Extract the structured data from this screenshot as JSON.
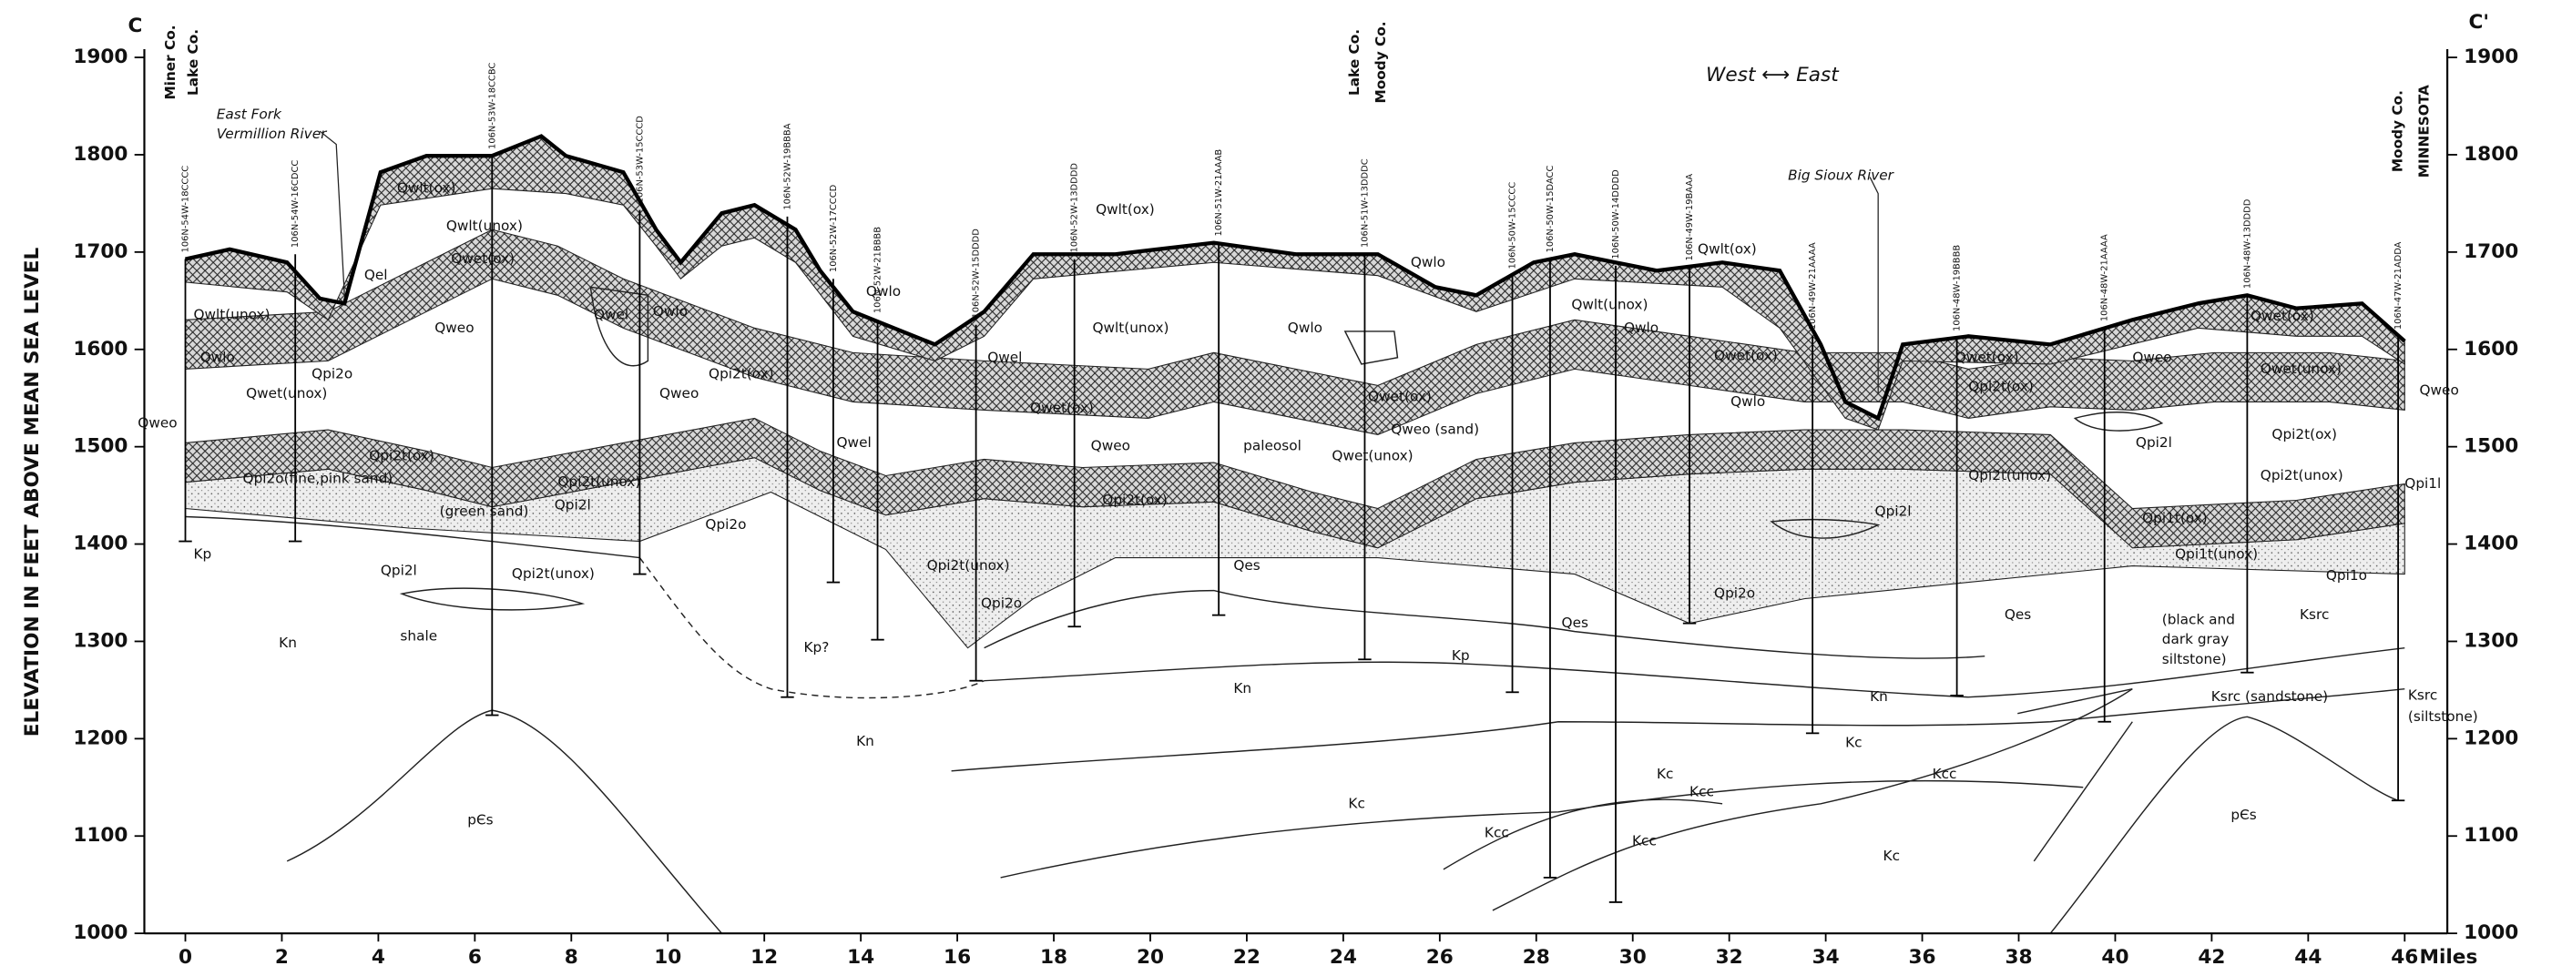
{
  "axis": {
    "y_label": "ELEVATION IN FEET ABOVE MEAN SEA LEVEL",
    "yticks": [
      1000,
      1100,
      1200,
      1300,
      1400,
      1500,
      1600,
      1700,
      1800,
      1900
    ],
    "xticks": [
      0,
      2,
      4,
      6,
      8,
      10,
      12,
      14,
      16,
      18,
      20,
      22,
      24,
      26,
      28,
      30,
      32,
      34,
      36,
      38,
      40,
      42,
      44,
      46
    ],
    "x_unit": "Miles"
  },
  "section": {
    "start": "C",
    "end": "C'"
  },
  "counties": [
    "Miner Co.",
    "Lake Co.",
    "Lake Co.",
    "Moody Co.",
    "Moody Co.",
    "MINNESOTA"
  ],
  "features": [
    "East Fork",
    "Vermillion River",
    "Big Sioux River",
    "West ⟷ East"
  ],
  "wells": [
    "106N-54W-18CCCC",
    "106N-54W-16CDCC",
    "106N-53W-18CCBC",
    "106N-53W-15CCCD",
    "106N-52W-19BBBA",
    "106N-52W-17CCCD",
    "106N-52W-21BBBB",
    "106N-52W-15DDDD",
    "106N-52W-13DDDD",
    "106N-51W-21AAAB",
    "106N-51W-13DDDC",
    "106N-50W-15CCCC",
    "106N-50W-15DACC",
    "106N-50W-14DDDD",
    "106N-49W-19BAAA",
    "106N-49W-21AAAA",
    "106N-48W-19BBBB",
    "106N-48W-21AAAA",
    "106N-48W-13DDDD",
    "106N-47W-21ADDA"
  ],
  "units": [
    "Qwlt(ox)",
    "Qwlt(unox)",
    "Qwet(ox)",
    "Qel",
    "Qwlt(unox)",
    "Qwlo",
    "Qwlo",
    "Qweo",
    "Qwel",
    "Qweo",
    "Qpi2o",
    "Qwet(unox)",
    "Qweo",
    "Qpi2t(ox)",
    "Qpi2o(fine,pink sand)",
    "Qpi2l",
    "Qpi2t(unox)",
    "(green sand)",
    "Qpi2o",
    "Kp",
    "Qpi2l",
    "Qpi2t(unox)",
    "shale",
    "Kn",
    "Qpi2t(ox)",
    "Qwel",
    "Kp?",
    "Kn",
    "Qwlo",
    "Qwel",
    "Qwet(ox)",
    "Qweo",
    "Qpi2t(ox)",
    "Qpi2t(unox)",
    "Qpi2o",
    "Qwlt(ox)",
    "Qwlt(unox)",
    "Qes",
    "Kn",
    "Qwlo",
    "paleosol",
    "Qwet(ox)",
    "Qwet(unox)",
    "Qweo (sand)",
    "Kp",
    "Kc",
    "Qwlo",
    "Qwlt(unox)",
    "Qwlo",
    "Qwlt(ox)",
    "Qwet(ox)",
    "Qwlo",
    "Qes",
    "Kc",
    "Kcc",
    "Kcc",
    "Kcc",
    "Kn",
    "Kc",
    "Kcc",
    "Kc",
    "Qpi2l",
    "Qes",
    "Qpi2t(unox)",
    "Qpi2o",
    "Qwet(ox)",
    "Qpi2t(ox)",
    "Qpi2l",
    "Qweo",
    "Qwet(unox)",
    "Qpi2t(ox)",
    "Qpi2t(unox)",
    "Qpi1t(ox)",
    "Qpi1t(unox)",
    "Qpi1o",
    "Qpi1l",
    "Qweo",
    "Qwet(ox)",
    "(black and",
    "dark gray",
    "siltstone)",
    "Ksrc",
    "Ksrc (sandstone)",
    "Ksrc",
    "(siltstone)",
    "pЄs",
    "pЄs"
  ]
}
